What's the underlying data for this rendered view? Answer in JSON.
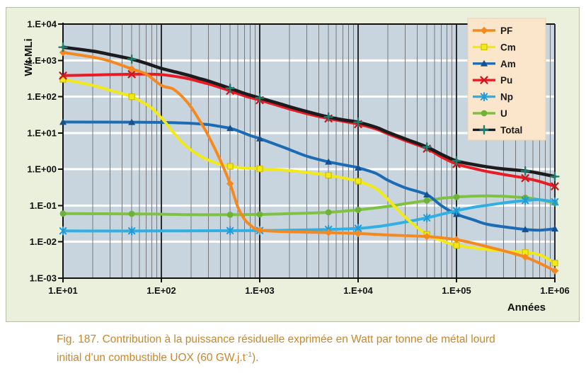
{
  "figure": {
    "y_axis_label_vertical": "W/t MLi",
    "x_axis_label": "Années",
    "y_ticks": [
      "1.E+04",
      "1.E+03",
      "1.E+02",
      "1.E+01",
      "1.E+00",
      "1.E-01",
      "1.E-02",
      "1.E-03"
    ],
    "x_ticks": [
      "1.E+01",
      "1.E+02",
      "1.E+03",
      "1.E+04",
      "1.E+05",
      "1.E+06"
    ]
  },
  "caption": {
    "line1": "Fig. 187. Contribution à la puissance résiduelle exprimée en Watt par tonne de métal lourd",
    "line2_pre": "initial d’un combustible UOX (60 GW.j.t",
    "line2_sup": "-1",
    "line2_post": ")."
  },
  "colors": {
    "panel_bg": "#EAF0DB",
    "plot_bg": "#C9D5DE",
    "grid_minor": "#75767A",
    "grid_major": "#2A2A2E",
    "grid_white": "#FFFFFF",
    "frame": "#111111",
    "legend_bg": "#FCE6CB",
    "legend_border": "#E6D3B6",
    "caption": "#C8872B",
    "axis_text": "#111111"
  },
  "chart_data": {
    "type": "line",
    "title": "",
    "xlabel": "Années",
    "ylabel": "W/t MLi",
    "x_scale": "log",
    "y_scale": "log",
    "xlim": [
      10,
      1000000
    ],
    "ylim": [
      0.001,
      10000
    ],
    "grid": {
      "horizontal": "white major decades",
      "vertical": "dark minor+major log lines"
    },
    "legend_position": "top-right",
    "marker_x": [
      10,
      50,
      500,
      1000,
      5000,
      10000,
      50000,
      100000,
      500000,
      1000000
    ],
    "draw_order": [
      "U",
      "Am",
      "Np",
      "Cm",
      "Pu",
      "PF",
      "Total"
    ],
    "series": [
      {
        "name": "PF",
        "color": "#F5891F",
        "marker": "diamond",
        "marker_color": "#F5891F",
        "points": [
          [
            10,
            1650
          ],
          [
            20,
            1230
          ],
          [
            30,
            950
          ],
          [
            50,
            580
          ],
          [
            70,
            420
          ],
          [
            100,
            205
          ],
          [
            130,
            165
          ],
          [
            160,
            105
          ],
          [
            200,
            52
          ],
          [
            250,
            20
          ],
          [
            300,
            8.5
          ],
          [
            400,
            1.7
          ],
          [
            500,
            0.4
          ],
          [
            600,
            0.09
          ],
          [
            700,
            0.042
          ],
          [
            800,
            0.029
          ],
          [
            1000,
            0.021
          ],
          [
            2000,
            0.019
          ],
          [
            5000,
            0.018
          ],
          [
            10000,
            0.017
          ],
          [
            20000,
            0.0155
          ],
          [
            50000,
            0.014
          ],
          [
            100000,
            0.0115
          ],
          [
            200000,
            0.0075
          ],
          [
            500000,
            0.0038
          ],
          [
            1000000,
            0.0016
          ]
        ]
      },
      {
        "name": "Cm",
        "color": "#F2E918",
        "marker": "square",
        "marker_color": "#F2E918",
        "marker_stroke": "#CFC000",
        "points": [
          [
            10,
            300
          ],
          [
            20,
            205
          ],
          [
            30,
            150
          ],
          [
            50,
            100
          ],
          [
            66,
            67
          ],
          [
            80,
            48
          ],
          [
            100,
            26
          ],
          [
            110,
            19.5
          ],
          [
            130,
            11
          ],
          [
            160,
            5.8
          ],
          [
            200,
            3.4
          ],
          [
            250,
            2.3
          ],
          [
            300,
            1.8
          ],
          [
            400,
            1.35
          ],
          [
            500,
            1.2
          ],
          [
            700,
            1.08
          ],
          [
            1000,
            1.03
          ],
          [
            2000,
            0.92
          ],
          [
            3000,
            0.82
          ],
          [
            5000,
            0.68
          ],
          [
            7000,
            0.58
          ],
          [
            10000,
            0.47
          ],
          [
            15000,
            0.3
          ],
          [
            20000,
            0.15
          ],
          [
            30000,
            0.048
          ],
          [
            50000,
            0.016
          ],
          [
            70000,
            0.011
          ],
          [
            100000,
            0.008
          ],
          [
            200000,
            0.0062
          ],
          [
            300000,
            0.0056
          ],
          [
            500000,
            0.0051
          ],
          [
            700000,
            0.0044
          ],
          [
            1000000,
            0.0026
          ]
        ]
      },
      {
        "name": "Am",
        "color": "#1B6CB5",
        "marker": "triangle",
        "marker_color": "#15508F",
        "points": [
          [
            10,
            20
          ],
          [
            50,
            19.8
          ],
          [
            100,
            19.5
          ],
          [
            150,
            19
          ],
          [
            200,
            18.5
          ],
          [
            300,
            17
          ],
          [
            400,
            15
          ],
          [
            500,
            13.5
          ],
          [
            600,
            11.5
          ],
          [
            800,
            8.5
          ],
          [
            1000,
            7
          ],
          [
            1500,
            4.7
          ],
          [
            2000,
            3.5
          ],
          [
            3000,
            2.3
          ],
          [
            5000,
            1.6
          ],
          [
            8000,
            1.25
          ],
          [
            10000,
            1.1
          ],
          [
            15000,
            0.78
          ],
          [
            20000,
            0.5
          ],
          [
            30000,
            0.31
          ],
          [
            50000,
            0.2
          ],
          [
            70000,
            0.1
          ],
          [
            100000,
            0.058
          ],
          [
            150000,
            0.04
          ],
          [
            200000,
            0.031
          ],
          [
            300000,
            0.026
          ],
          [
            500000,
            0.022
          ],
          [
            700000,
            0.021
          ],
          [
            1000000,
            0.023
          ]
        ]
      },
      {
        "name": "Pu",
        "color": "#EA1C23",
        "marker": "x",
        "marker_color": "#C81A20",
        "points": [
          [
            10,
            380
          ],
          [
            20,
            395
          ],
          [
            30,
            405
          ],
          [
            50,
            415
          ],
          [
            70,
            418
          ],
          [
            100,
            405
          ],
          [
            150,
            350
          ],
          [
            200,
            300
          ],
          [
            250,
            255
          ],
          [
            300,
            225
          ],
          [
            500,
            145
          ],
          [
            700,
            105
          ],
          [
            1000,
            80
          ],
          [
            1500,
            58
          ],
          [
            2000,
            46
          ],
          [
            3000,
            34
          ],
          [
            5000,
            25
          ],
          [
            7000,
            21
          ],
          [
            10000,
            17.5
          ],
          [
            15000,
            13
          ],
          [
            20000,
            9.5
          ],
          [
            30000,
            6.2
          ],
          [
            50000,
            3.7
          ],
          [
            70000,
            2.2
          ],
          [
            100000,
            1.4
          ],
          [
            150000,
            1.05
          ],
          [
            200000,
            0.88
          ],
          [
            300000,
            0.72
          ],
          [
            500000,
            0.57
          ],
          [
            700000,
            0.46
          ],
          [
            1000000,
            0.34
          ]
        ]
      },
      {
        "name": "Np",
        "color": "#2FAFE3",
        "marker": "asterisk",
        "marker_color": "#1D9AD7",
        "points": [
          [
            10,
            0.02
          ],
          [
            100,
            0.02
          ],
          [
            1000,
            0.0205
          ],
          [
            2000,
            0.021
          ],
          [
            5000,
            0.022
          ],
          [
            10000,
            0.0235
          ],
          [
            15000,
            0.026
          ],
          [
            20000,
            0.029
          ],
          [
            30000,
            0.035
          ],
          [
            50000,
            0.046
          ],
          [
            70000,
            0.057
          ],
          [
            100000,
            0.072
          ],
          [
            150000,
            0.09
          ],
          [
            200000,
            0.101
          ],
          [
            300000,
            0.118
          ],
          [
            500000,
            0.138
          ],
          [
            700000,
            0.145
          ],
          [
            1000000,
            0.126
          ]
        ]
      },
      {
        "name": "U",
        "color": "#7FC241",
        "marker": "circle",
        "marker_color": "#6DB33A",
        "points": [
          [
            10,
            0.06
          ],
          [
            50,
            0.059
          ],
          [
            100,
            0.058
          ],
          [
            200,
            0.056
          ],
          [
            500,
            0.056
          ],
          [
            1000,
            0.057
          ],
          [
            2000,
            0.06
          ],
          [
            5000,
            0.065
          ],
          [
            10000,
            0.076
          ],
          [
            20000,
            0.095
          ],
          [
            30000,
            0.112
          ],
          [
            50000,
            0.138
          ],
          [
            70000,
            0.158
          ],
          [
            100000,
            0.172
          ],
          [
            150000,
            0.182
          ],
          [
            200000,
            0.185
          ],
          [
            300000,
            0.18
          ],
          [
            500000,
            0.165
          ],
          [
            700000,
            0.145
          ],
          [
            1000000,
            0.118
          ]
        ]
      },
      {
        "name": "Total",
        "color": "#1C1C1E",
        "marker": "plus",
        "marker_color": "#1E7F6F",
        "points": [
          [
            10,
            2300
          ],
          [
            20,
            1800
          ],
          [
            30,
            1450
          ],
          [
            50,
            1080
          ],
          [
            70,
            830
          ],
          [
            100,
            600
          ],
          [
            150,
            455
          ],
          [
            200,
            370
          ],
          [
            250,
            310
          ],
          [
            300,
            270
          ],
          [
            500,
            170
          ],
          [
            700,
            123
          ],
          [
            1000,
            92
          ],
          [
            1500,
            67
          ],
          [
            2000,
            53
          ],
          [
            3000,
            39
          ],
          [
            5000,
            27.5
          ],
          [
            7000,
            23
          ],
          [
            10000,
            19.8
          ],
          [
            15000,
            14.5
          ],
          [
            20000,
            10.5
          ],
          [
            30000,
            6.9
          ],
          [
            50000,
            4.1
          ],
          [
            70000,
            2.6
          ],
          [
            100000,
            1.7
          ],
          [
            150000,
            1.35
          ],
          [
            200000,
            1.18
          ],
          [
            300000,
            1.02
          ],
          [
            500000,
            0.9
          ],
          [
            700000,
            0.77
          ],
          [
            1000000,
            0.63
          ]
        ]
      }
    ]
  }
}
